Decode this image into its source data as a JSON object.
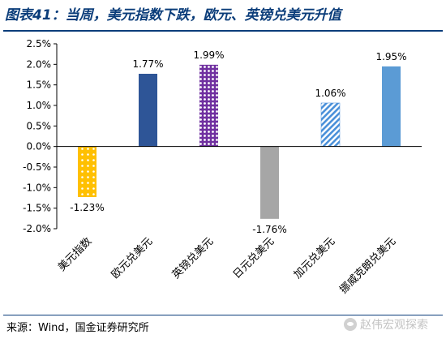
{
  "title": "图表41：当周，美元指数下跌，欧元、英镑兑美元升值",
  "source": "来源：Wind，国金证券研究所",
  "watermark": "赵伟宏观探索",
  "chart_data": {
    "type": "bar",
    "categories": [
      "美元指数",
      "欧元兑美元",
      "英镑兑美元",
      "日元兑美元",
      "加元兑美元",
      "挪威克朗兑美元"
    ],
    "values": [
      -1.23,
      1.77,
      1.99,
      -1.76,
      1.06,
      1.95
    ],
    "data_labels": [
      "-1.23%",
      "1.77%",
      "1.99%",
      "-1.76%",
      "1.06%",
      "1.95%"
    ],
    "ylim": [
      -2.0,
      2.5
    ],
    "y_ticks": [
      2.5,
      2.0,
      1.5,
      1.0,
      0.5,
      0.0,
      -0.5,
      -1.0,
      -1.5,
      -2.0
    ],
    "y_tick_labels": [
      "2.5%",
      "2.0%",
      "1.5%",
      "1.0%",
      "0.5%",
      "0.0%",
      "-0.5%",
      "-1.0%",
      "-1.5%",
      "-2.0%"
    ],
    "grid": false,
    "bar_styles": [
      {
        "fill": "#ffc000",
        "pattern": "dots"
      },
      {
        "fill": "#2e5597",
        "pattern": "solid"
      },
      {
        "fill": "#7030a0",
        "pattern": "lattice"
      },
      {
        "fill": "#a6a6a6",
        "pattern": "solid"
      },
      {
        "fill": "#4a90d9",
        "pattern": "diagonal"
      },
      {
        "fill": "#5b9bd5",
        "pattern": "solid"
      }
    ]
  }
}
